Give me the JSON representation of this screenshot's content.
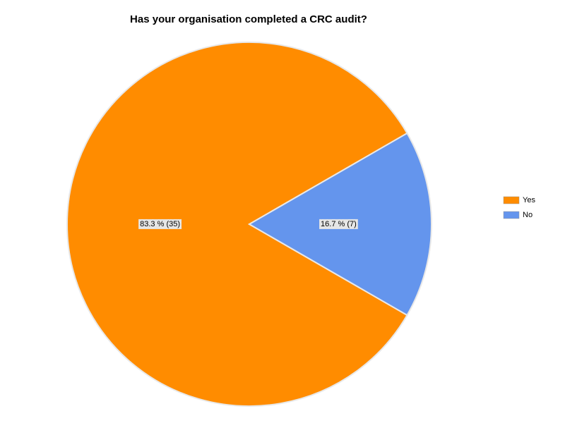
{
  "chart_data": {
    "type": "pie",
    "title": "Has your organisation completed a CRC audit?",
    "categories": [
      "Yes",
      "No"
    ],
    "values": [
      35,
      7
    ],
    "value_labels": [
      "83.3 % (35)",
      "16.7 % (7)"
    ],
    "colors": [
      "#ff8c00",
      "#6495ed"
    ],
    "legend": "right"
  }
}
